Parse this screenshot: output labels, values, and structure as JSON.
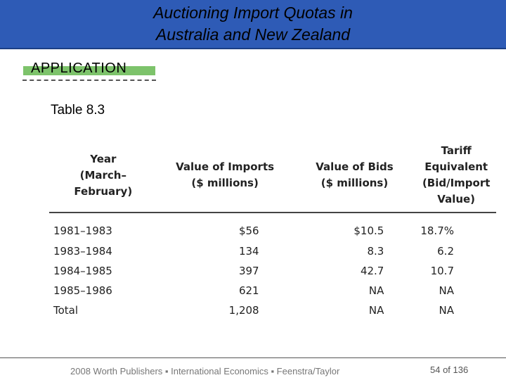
{
  "slide": {
    "title": "Auctioning Import Quotas in\nAustralia and New Zealand",
    "section_label": "APPLICATION",
    "table_caption": "Table 8.3"
  },
  "table": {
    "headers": [
      "Year\n(March–February)",
      "Value of Imports\n($ millions)",
      "Value of Bids\n($ millions)",
      "Tariff Equivalent\n(Bid/Import Value)"
    ],
    "rows": [
      [
        "1981–1983",
        "$56",
        "$10.5",
        "18.7%"
      ],
      [
        "1983–1984",
        "134",
        "8.3",
        "6.2"
      ],
      [
        "1984–1985",
        "397",
        "42.7",
        "10.7"
      ],
      [
        "1985–1986",
        "621",
        "NA",
        "NA"
      ],
      [
        "Total",
        "1,208",
        "NA",
        "NA"
      ]
    ]
  },
  "footer": {
    "credit": "2008 Worth Publishers ▪ International Economics ▪ Feenstra/Taylor",
    "page_number": "54 of 136"
  },
  "colors": {
    "title_bar": "#2e5bb6",
    "section_tag": "#7dc36b"
  }
}
